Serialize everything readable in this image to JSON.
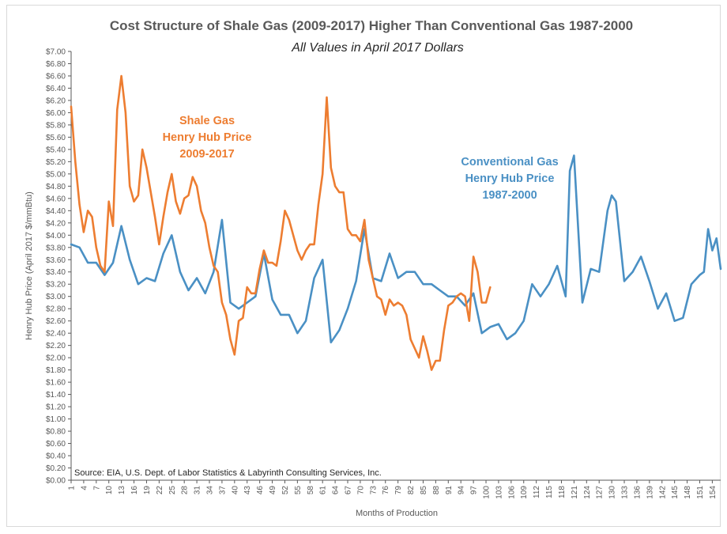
{
  "chart_data": {
    "type": "line",
    "title": "Cost Structure of Shale Gas (2009-2017) Higher Than Conventional Gas 1987-2000",
    "subtitle": "All Values in April 2017 Dollars",
    "xlabel": "Months of Production",
    "ylabel": "Henry Hub Price (April 2017 $/mmBtu)",
    "ylim": [
      0,
      7
    ],
    "xlim": [
      1,
      156
    ],
    "y_ticks": [
      "$0.00",
      "$0.20",
      "$0.40",
      "$0.60",
      "$0.80",
      "$1.00",
      "$1.20",
      "$1.40",
      "$1.60",
      "$1.80",
      "$2.00",
      "$2.20",
      "$2.40",
      "$2.60",
      "$2.80",
      "$3.00",
      "$3.20",
      "$3.40",
      "$3.60",
      "$3.80",
      "$4.00",
      "$4.20",
      "$4.40",
      "$4.60",
      "$4.80",
      "$5.00",
      "$5.20",
      "$5.40",
      "$5.60",
      "$5.80",
      "$6.00",
      "$6.20",
      "$6.40",
      "$6.60",
      "$6.80",
      "$7.00"
    ],
    "x_ticks": [
      1,
      4,
      7,
      10,
      13,
      16,
      19,
      22,
      25,
      28,
      31,
      34,
      37,
      40,
      43,
      46,
      49,
      52,
      55,
      58,
      61,
      64,
      67,
      70,
      73,
      76,
      79,
      82,
      85,
      88,
      91,
      94,
      97,
      100,
      103,
      106,
      109,
      112,
      115,
      118,
      121,
      124,
      127,
      130,
      133,
      136,
      139,
      142,
      145,
      148,
      151,
      154
    ],
    "grid": false,
    "source": "Source: EIA, U.S. Dept. of Labor Statistics & Labyrinth Consulting Services, Inc.",
    "annotations": [
      {
        "lines": [
          "Shale Gas",
          "Henry Hub Price",
          "2009-2017"
        ],
        "color": "#ED7D31"
      },
      {
        "lines": [
          "Conventional Gas",
          "Henry Hub Price",
          "1987-2000"
        ],
        "color": "#4A90C4"
      }
    ],
    "series": [
      {
        "color": "#ED7D31",
        "x": [
          1,
          2,
          3,
          4,
          5,
          6,
          7,
          8,
          9,
          10,
          11,
          12,
          13,
          14,
          15,
          16,
          17,
          18,
          19,
          20,
          21,
          22,
          23,
          24,
          25,
          26,
          27,
          28,
          29,
          30,
          31,
          32,
          33,
          34,
          35,
          36,
          37,
          38,
          39,
          40,
          41,
          42,
          43,
          44,
          45,
          46,
          47,
          48,
          49,
          50,
          51,
          52,
          53,
          54,
          55,
          56,
          57,
          58,
          59,
          60,
          61,
          62,
          63,
          64,
          65,
          66,
          67,
          68,
          69,
          70,
          71,
          72,
          73,
          74,
          75,
          76,
          77,
          78,
          79,
          80,
          81,
          82,
          83,
          84,
          85,
          86,
          87,
          88,
          89,
          90,
          91,
          92,
          93,
          94,
          95,
          96,
          97,
          98,
          99,
          100,
          101
        ],
        "values": [
          6.1,
          5.2,
          4.5,
          4.05,
          4.4,
          4.3,
          3.8,
          3.5,
          3.4,
          4.55,
          4.15,
          6.05,
          6.6,
          6.0,
          4.8,
          4.55,
          4.65,
          5.4,
          5.1,
          4.7,
          4.3,
          3.85,
          4.3,
          4.7,
          5.0,
          4.55,
          4.35,
          4.6,
          4.65,
          4.95,
          4.8,
          4.4,
          4.2,
          3.8,
          3.5,
          3.4,
          2.9,
          2.7,
          2.3,
          2.05,
          2.6,
          2.65,
          3.15,
          3.05,
          3.05,
          3.45,
          3.75,
          3.55,
          3.55,
          3.5,
          3.9,
          4.4,
          4.25,
          4.0,
          3.75,
          3.6,
          3.75,
          3.85,
          3.85,
          4.5,
          5.0,
          6.25,
          5.1,
          4.8,
          4.7,
          4.7,
          4.1,
          4.0,
          4.0,
          3.9,
          4.25,
          3.6,
          3.3,
          3.0,
          2.95,
          2.7,
          2.95,
          2.85,
          2.9,
          2.85,
          2.7,
          2.3,
          2.15,
          2.0,
          2.35,
          2.1,
          1.8,
          1.95,
          1.95,
          2.45,
          2.85,
          2.9,
          3.0,
          3.05,
          3.0,
          2.6,
          3.65,
          3.4,
          2.9,
          2.9,
          3.15
        ]
      },
      {
        "color": "#4A90C4",
        "x": [
          1,
          3,
          5,
          7,
          9,
          11,
          13,
          15,
          17,
          19,
          21,
          23,
          25,
          27,
          29,
          31,
          33,
          35,
          37,
          39,
          41,
          43,
          45,
          47,
          49,
          51,
          53,
          55,
          57,
          59,
          61,
          63,
          65,
          67,
          69,
          71,
          73,
          75,
          77,
          79,
          81,
          83,
          85,
          87,
          89,
          91,
          93,
          95,
          97,
          99,
          101,
          103,
          105,
          107,
          109,
          111,
          113,
          115,
          117,
          119,
          120,
          121,
          123,
          125,
          127,
          129,
          130,
          131,
          133,
          135,
          137,
          139,
          141,
          143,
          145,
          147,
          149,
          151,
          152,
          153,
          154,
          155,
          156
        ],
        "values": [
          3.85,
          3.8,
          3.55,
          3.55,
          3.35,
          3.55,
          4.15,
          3.6,
          3.2,
          3.3,
          3.25,
          3.7,
          4.0,
          3.4,
          3.1,
          3.3,
          3.05,
          3.4,
          4.25,
          2.9,
          2.8,
          2.9,
          3.0,
          3.7,
          2.95,
          2.7,
          2.7,
          2.4,
          2.6,
          3.3,
          3.6,
          2.25,
          2.45,
          2.8,
          3.25,
          4.1,
          3.3,
          3.25,
          3.7,
          3.3,
          3.4,
          3.4,
          3.2,
          3.2,
          3.1,
          3.0,
          3.0,
          2.85,
          3.05,
          2.4,
          2.5,
          2.55,
          2.3,
          2.4,
          2.6,
          3.2,
          3.0,
          3.2,
          3.5,
          3.0,
          5.05,
          5.3,
          2.9,
          3.45,
          3.4,
          4.4,
          4.65,
          4.55,
          3.25,
          3.4,
          3.65,
          3.25,
          2.8,
          3.05,
          2.6,
          2.65,
          3.2,
          3.35,
          3.4,
          4.1,
          3.75,
          3.95,
          3.45
        ]
      }
    ]
  }
}
